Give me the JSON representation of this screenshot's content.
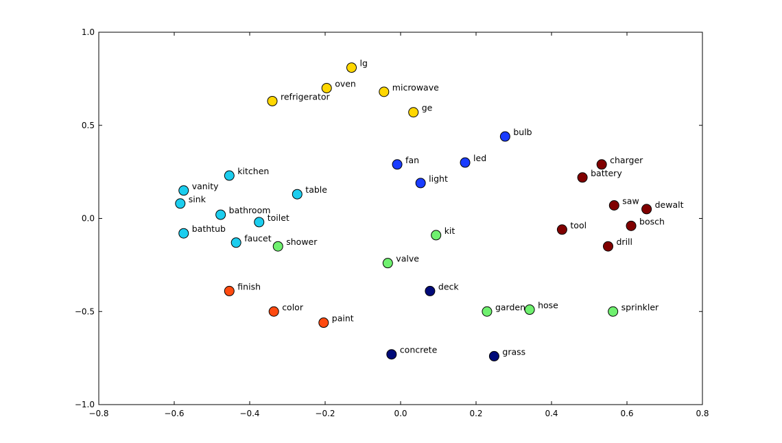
{
  "chart_data": {
    "type": "scatter",
    "title": "",
    "xlabel": "",
    "ylabel": "",
    "xlim": [
      -0.8,
      0.8
    ],
    "ylim": [
      -1.0,
      1.0
    ],
    "x_ticks": [
      "−0.8",
      "−0.6",
      "−0.4",
      "−0.2",
      "0.0",
      "0.2",
      "0.4",
      "0.6",
      "0.8"
    ],
    "y_ticks": [
      "−1.0",
      "−0.5",
      "0.0",
      "0.5",
      "1.0"
    ],
    "grid": false,
    "legend": "none",
    "colors": {
      "appliances": "#ffd700",
      "lighting": "#1a3cff",
      "bath": "#1ccdee",
      "tools": "#800000",
      "outdoor": "#6ff06f",
      "paint": "#ff4a10",
      "ground": "#000a78"
    },
    "points": [
      {
        "label": "lg",
        "x": -0.13,
        "y": 0.81,
        "group": "appliances"
      },
      {
        "label": "oven",
        "x": -0.196,
        "y": 0.7,
        "group": "appliances"
      },
      {
        "label": "microwave",
        "x": -0.044,
        "y": 0.68,
        "group": "appliances"
      },
      {
        "label": "refrigerator",
        "x": -0.34,
        "y": 0.63,
        "group": "appliances"
      },
      {
        "label": "ge",
        "x": 0.034,
        "y": 0.57,
        "group": "appliances"
      },
      {
        "label": "bulb",
        "x": 0.277,
        "y": 0.44,
        "group": "lighting"
      },
      {
        "label": "fan",
        "x": -0.009,
        "y": 0.29,
        "group": "lighting"
      },
      {
        "label": "led",
        "x": 0.171,
        "y": 0.3,
        "group": "lighting"
      },
      {
        "label": "light",
        "x": 0.053,
        "y": 0.19,
        "group": "lighting"
      },
      {
        "label": "kitchen",
        "x": -0.454,
        "y": 0.23,
        "group": "bath"
      },
      {
        "label": "vanity",
        "x": -0.575,
        "y": 0.15,
        "group": "bath"
      },
      {
        "label": "sink",
        "x": -0.584,
        "y": 0.08,
        "group": "bath"
      },
      {
        "label": "table",
        "x": -0.274,
        "y": 0.13,
        "group": "bath"
      },
      {
        "label": "bathroom",
        "x": -0.477,
        "y": 0.02,
        "group": "bath"
      },
      {
        "label": "toilet",
        "x": -0.375,
        "y": -0.02,
        "group": "bath"
      },
      {
        "label": "bathtub",
        "x": -0.575,
        "y": -0.08,
        "group": "bath"
      },
      {
        "label": "faucet",
        "x": -0.436,
        "y": -0.13,
        "group": "bath"
      },
      {
        "label": "charger",
        "x": 0.533,
        "y": 0.29,
        "group": "tools"
      },
      {
        "label": "battery",
        "x": 0.482,
        "y": 0.22,
        "group": "tools"
      },
      {
        "label": "saw",
        "x": 0.566,
        "y": 0.07,
        "group": "tools"
      },
      {
        "label": "dewalt",
        "x": 0.652,
        "y": 0.05,
        "group": "tools"
      },
      {
        "label": "bosch",
        "x": 0.611,
        "y": -0.04,
        "group": "tools"
      },
      {
        "label": "tool",
        "x": 0.428,
        "y": -0.06,
        "group": "tools"
      },
      {
        "label": "drill",
        "x": 0.55,
        "y": -0.15,
        "group": "tools"
      },
      {
        "label": "kit",
        "x": 0.094,
        "y": -0.09,
        "group": "outdoor"
      },
      {
        "label": "shower",
        "x": -0.325,
        "y": -0.15,
        "group": "outdoor"
      },
      {
        "label": "valve",
        "x": -0.034,
        "y": -0.24,
        "group": "outdoor"
      },
      {
        "label": "garden",
        "x": 0.229,
        "y": -0.5,
        "group": "outdoor"
      },
      {
        "label": "hose",
        "x": 0.342,
        "y": -0.49,
        "group": "outdoor"
      },
      {
        "label": "sprinkler",
        "x": 0.563,
        "y": -0.5,
        "group": "outdoor"
      },
      {
        "label": "finish",
        "x": -0.454,
        "y": -0.39,
        "group": "paint"
      },
      {
        "label": "color",
        "x": -0.336,
        "y": -0.5,
        "group": "paint"
      },
      {
        "label": "paint",
        "x": -0.204,
        "y": -0.56,
        "group": "paint"
      },
      {
        "label": "deck",
        "x": 0.078,
        "y": -0.39,
        "group": "ground"
      },
      {
        "label": "concrete",
        "x": -0.024,
        "y": -0.73,
        "group": "ground"
      },
      {
        "label": "grass",
        "x": 0.248,
        "y": -0.74,
        "group": "ground"
      }
    ]
  }
}
